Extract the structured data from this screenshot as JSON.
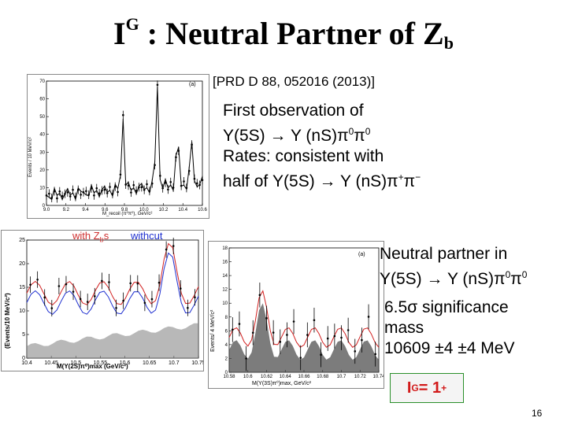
{
  "title": {
    "main": "I",
    "sup": "G",
    "rest": " : Neutral Partner of Z",
    "sub": "b"
  },
  "reference": "[PRD D 88, 052016 (2013)]",
  "block1": {
    "line1": "First observation of",
    "line2a": "Υ(5S) → Υ (nS)π",
    "line2b": "0",
    "line2c": "π",
    "line2d": "0",
    "line3": "Rates: consistent with",
    "line4a": "half of Υ(5S) → Υ (nS)π",
    "line4b": "+",
    "line4c": "π",
    "line4d": "−"
  },
  "block2": {
    "line1": "Neutral partner in",
    "line2a": "Υ(5S) → Υ (nS)π",
    "line2b": "0",
    "line2c": "π",
    "line2d": "0",
    "line3": "6.5σ significance",
    "line4": "mass",
    "line5": "10609 ±4 ±4 MeV"
  },
  "badge": {
    "main": "I",
    "sup": "G",
    "rest": " = 1",
    "sup2": "+"
  },
  "page_number": "16",
  "plot_top": {
    "ylabel": "Events / 10 MeV/c²",
    "xlabel": "M_recoil (π⁰π⁰), GeV/c²",
    "panel": "(a)",
    "yticks": [
      "0",
      "10",
      "20",
      "30",
      "40",
      "50",
      "60",
      "70"
    ],
    "xticks": [
      "9.0",
      "9.2",
      "9.4",
      "9.6",
      "9.8",
      "10.0",
      "10.2",
      "10.4",
      "10.6"
    ]
  },
  "plot_left": {
    "legend_with": "with Z",
    "legend_with_sub": "b",
    "legend_with_end": "s",
    "legend_cut": "withcut",
    "ylabel": "(Events/10 MeV/c²)",
    "xlabel": "M(Υ(2S)π⁰)max (GeV/c²)",
    "yticks": [
      "0",
      "5",
      "10",
      "15",
      "20",
      "25"
    ],
    "xticks": [
      "10.4",
      "10.45",
      "10.5",
      "10.55",
      "10.6",
      "10.65",
      "10.7",
      "10.75"
    ]
  },
  "plot_right": {
    "ylabel": "Events/ 4 MeV/c²",
    "xlabel": "M(Υ(3S)π⁰)max, GeV/c²",
    "panel": "(a)",
    "yticks": [
      "0",
      "2",
      "4",
      "6",
      "8",
      "10",
      "12",
      "14",
      "16",
      "18"
    ],
    "xticks": [
      "10.58",
      "10.6",
      "10.62",
      "10.64",
      "10.66",
      "10.68",
      "10.7",
      "10.72",
      "10.74"
    ]
  },
  "colors": {
    "badge_text": "#d21a1a",
    "badge_border": "#2a8f2a",
    "fit_red": "#d22020",
    "fit_blue": "#1e2fd0",
    "legend_red": "#d03030"
  }
}
